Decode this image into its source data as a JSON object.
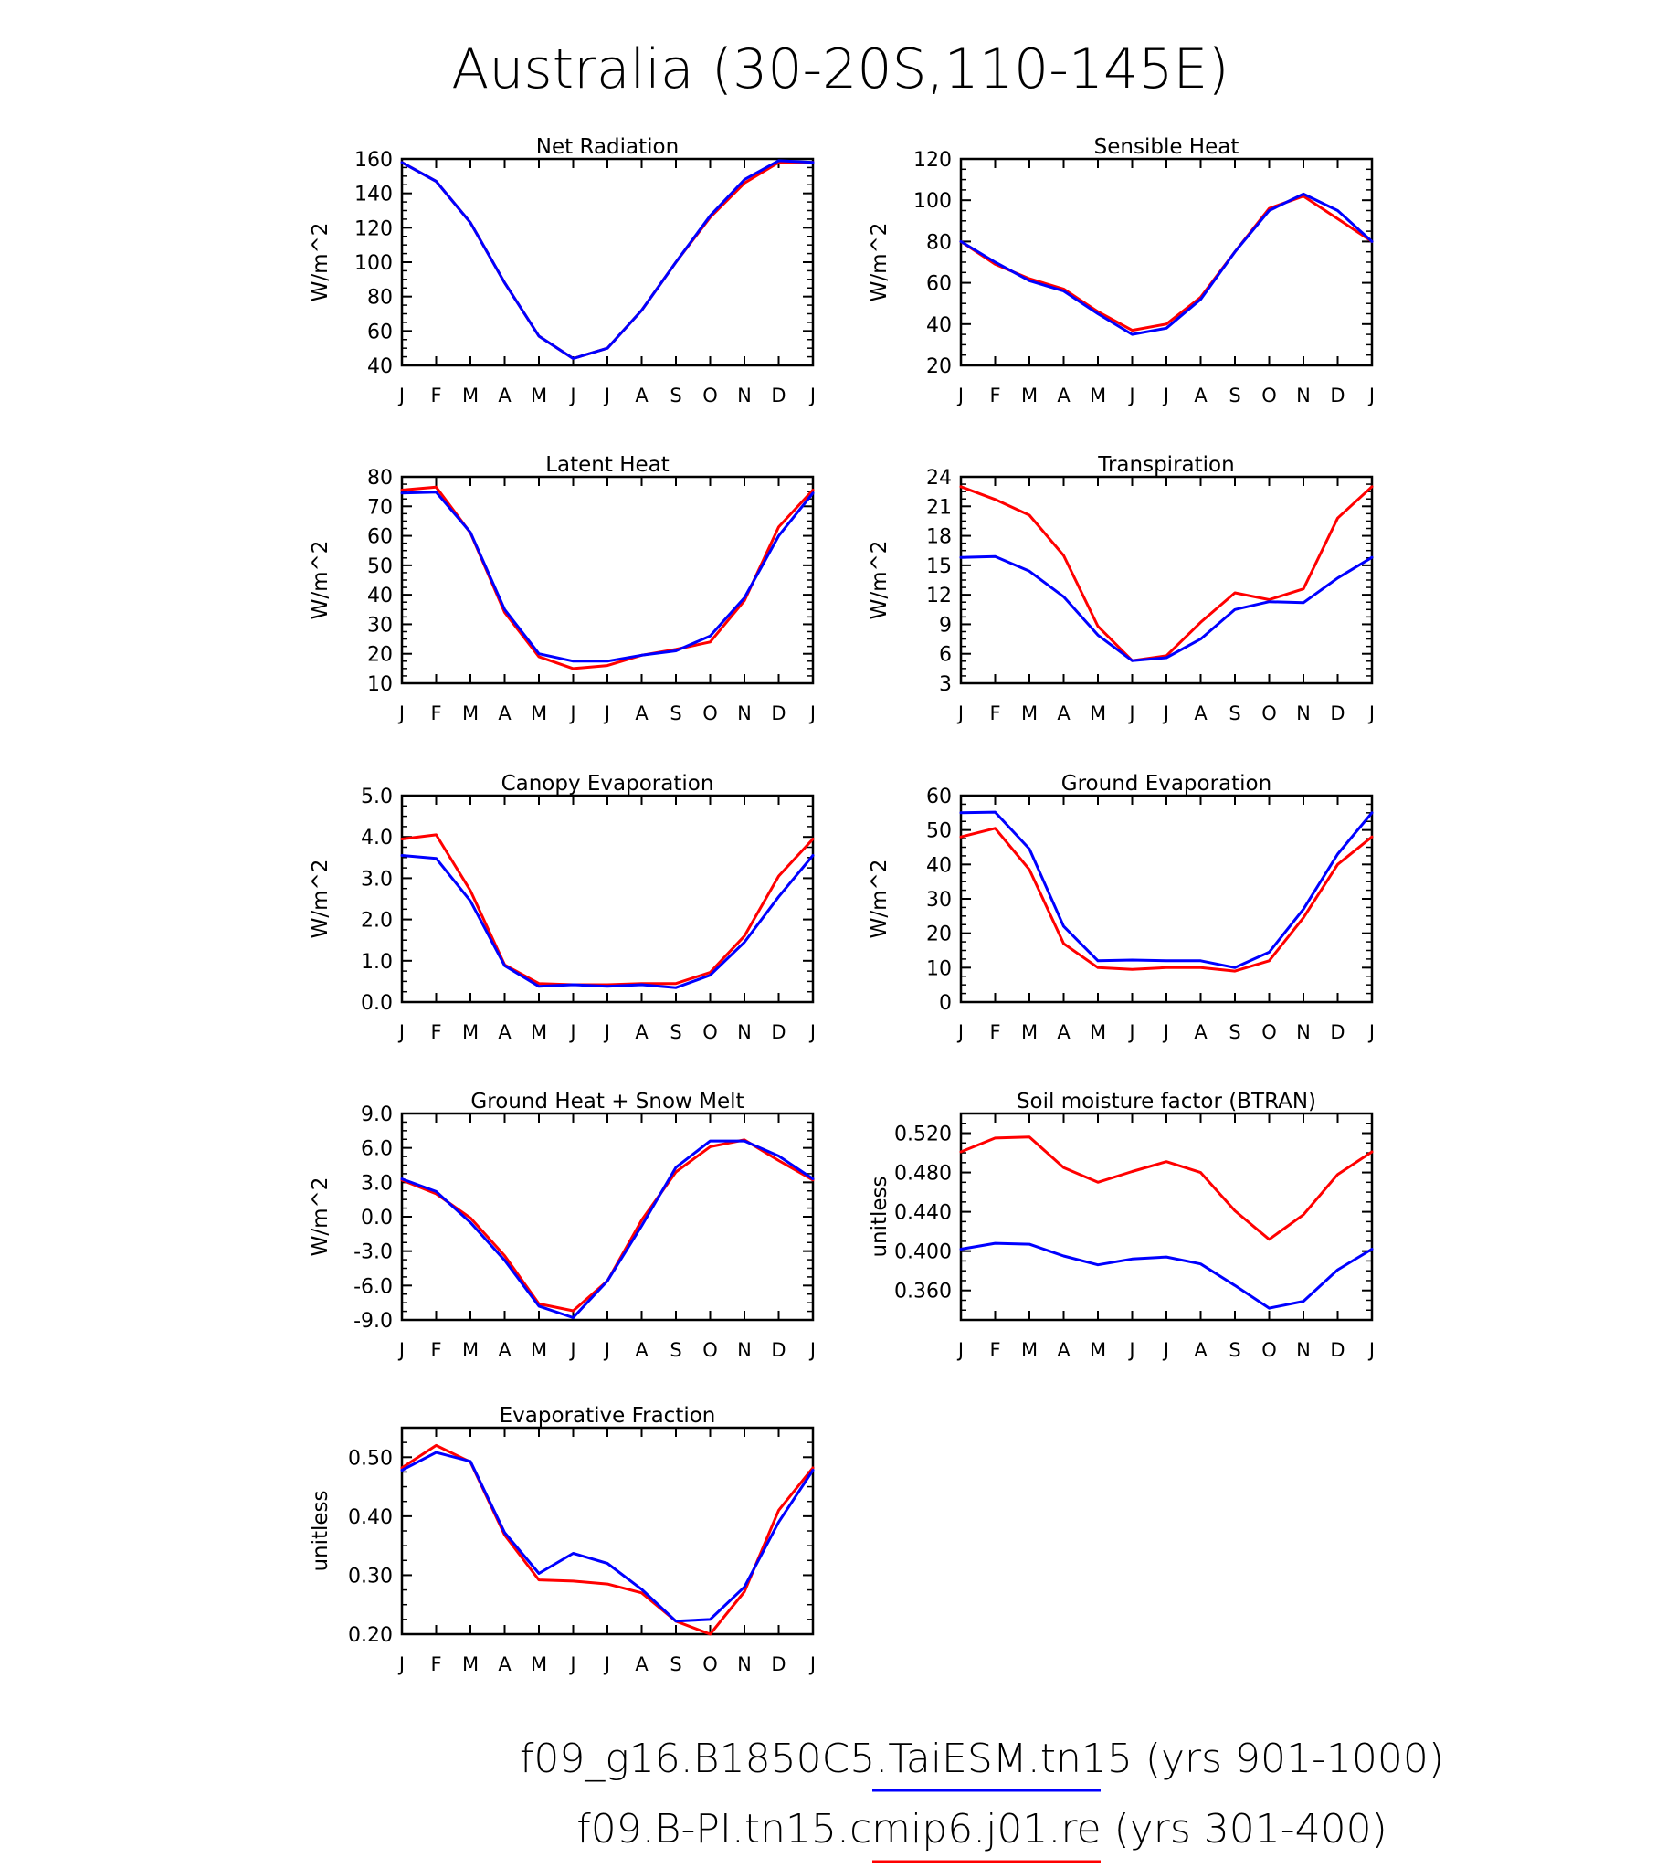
{
  "figure": {
    "title": "Australia (30-20S,110-145E)",
    "legend": [
      {
        "label": "f09_g16.B1850C5.TaiESM.tn15 (yrs 901-1000)",
        "color": "#0000ff"
      },
      {
        "label": "f09.B-PI.tn15.cmip6.j01.re (yrs 301-400)",
        "color": "#ff0000"
      }
    ]
  },
  "chart_data": [
    {
      "type": "line",
      "title": "Net Radiation",
      "ylabel": "W/m^2",
      "categories": [
        "J",
        "F",
        "M",
        "A",
        "M",
        "J",
        "J",
        "A",
        "S",
        "O",
        "N",
        "D",
        "J"
      ],
      "ylim": [
        40,
        160
      ],
      "yticks": [
        "40",
        "60",
        "80",
        "100",
        "120",
        "140",
        "160"
      ],
      "series": [
        {
          "color": "#ff0000",
          "values": [
            158,
            147,
            123,
            88,
            57,
            44,
            50,
            72,
            100,
            126,
            146,
            158,
            158
          ]
        },
        {
          "color": "#0000ff",
          "values": [
            158,
            147,
            123,
            88,
            57,
            44,
            50,
            72,
            100,
            127,
            148,
            159,
            158
          ]
        }
      ]
    },
    {
      "type": "line",
      "title": "Sensible Heat",
      "ylabel": "W/m^2",
      "categories": [
        "J",
        "F",
        "M",
        "A",
        "M",
        "J",
        "J",
        "A",
        "S",
        "O",
        "N",
        "D",
        "J"
      ],
      "ylim": [
        20,
        120
      ],
      "yticks": [
        "20",
        "40",
        "60",
        "80",
        "100",
        "120"
      ],
      "series": [
        {
          "color": "#ff0000",
          "values": [
            80,
            69,
            62,
            57,
            46,
            37,
            40,
            53,
            75,
            96,
            102,
            91,
            80
          ]
        },
        {
          "color": "#0000ff",
          "values": [
            80,
            70,
            61,
            56,
            45,
            35,
            38,
            52,
            75,
            95,
            103,
            95,
            80
          ]
        }
      ]
    },
    {
      "type": "line",
      "title": "Latent Heat",
      "ylabel": "W/m^2",
      "categories": [
        "J",
        "F",
        "M",
        "A",
        "M",
        "J",
        "J",
        "A",
        "S",
        "O",
        "N",
        "D",
        "J"
      ],
      "ylim": [
        10,
        80
      ],
      "yticks": [
        "10",
        "20",
        "30",
        "40",
        "50",
        "60",
        "70",
        "80"
      ],
      "series": [
        {
          "color": "#ff0000",
          "values": [
            75.5,
            76.5,
            61,
            34,
            19,
            15,
            16,
            19.5,
            21.5,
            24,
            38,
            63,
            75.5
          ]
        },
        {
          "color": "#0000ff",
          "values": [
            74.5,
            74.8,
            61.2,
            35,
            20,
            17.5,
            17.5,
            19.5,
            21,
            26,
            39,
            60,
            74.5
          ]
        }
      ]
    },
    {
      "type": "line",
      "title": "Transpiration",
      "ylabel": "W/m^2",
      "categories": [
        "J",
        "F",
        "M",
        "A",
        "M",
        "J",
        "J",
        "A",
        "S",
        "O",
        "N",
        "D",
        "J"
      ],
      "ylim": [
        3,
        24
      ],
      "yticks": [
        "3",
        "6",
        "9",
        "12",
        "15",
        "18",
        "21",
        "24"
      ],
      "series": [
        {
          "color": "#ff0000",
          "values": [
            23,
            21.7,
            20.1,
            16,
            8.8,
            5.3,
            5.8,
            9.2,
            12.2,
            11.5,
            12.6,
            19.8,
            23
          ]
        },
        {
          "color": "#0000ff",
          "values": [
            15.8,
            15.9,
            14.4,
            11.8,
            7.9,
            5.3,
            5.6,
            7.5,
            10.5,
            11.3,
            11.2,
            13.7,
            15.8
          ]
        }
      ]
    },
    {
      "type": "line",
      "title": "Canopy Evaporation",
      "ylabel": "W/m^2",
      "categories": [
        "J",
        "F",
        "M",
        "A",
        "M",
        "J",
        "J",
        "A",
        "S",
        "O",
        "N",
        "D",
        "J"
      ],
      "ylim": [
        0,
        5
      ],
      "yticks": [
        "0.0",
        "1.0",
        "2.0",
        "3.0",
        "4.0",
        "5.0"
      ],
      "series": [
        {
          "color": "#ff0000",
          "values": [
            3.95,
            4.05,
            2.7,
            0.9,
            0.45,
            0.42,
            0.42,
            0.45,
            0.45,
            0.72,
            1.6,
            3.05,
            3.95
          ]
        },
        {
          "color": "#0000ff",
          "values": [
            3.55,
            3.48,
            2.45,
            0.88,
            0.38,
            0.42,
            0.38,
            0.42,
            0.35,
            0.65,
            1.45,
            2.55,
            3.55
          ]
        }
      ]
    },
    {
      "type": "line",
      "title": "Ground Evaporation",
      "ylabel": "W/m^2",
      "categories": [
        "J",
        "F",
        "M",
        "A",
        "M",
        "J",
        "J",
        "A",
        "S",
        "O",
        "N",
        "D",
        "J"
      ],
      "ylim": [
        0,
        60
      ],
      "yticks": [
        "0",
        "10",
        "20",
        "30",
        "40",
        "50",
        "60"
      ],
      "series": [
        {
          "color": "#ff0000",
          "values": [
            48,
            50.5,
            38.5,
            17,
            10,
            9.5,
            10,
            10,
            9,
            12,
            24.5,
            40,
            48
          ]
        },
        {
          "color": "#0000ff",
          "values": [
            55,
            55.2,
            44.5,
            22,
            12,
            12.2,
            12,
            12,
            10,
            14.5,
            27,
            43,
            55
          ]
        }
      ]
    },
    {
      "type": "line",
      "title": "Ground Heat + Snow Melt",
      "ylabel": "W/m^2",
      "categories": [
        "J",
        "F",
        "M",
        "A",
        "M",
        "J",
        "J",
        "A",
        "S",
        "O",
        "N",
        "D",
        "J"
      ],
      "ylim": [
        -9,
        9
      ],
      "yticks": [
        "-9.0",
        "-6.0",
        "-3.0",
        "0.0",
        "3.0",
        "6.0",
        "9.0"
      ],
      "series": [
        {
          "color": "#ff0000",
          "values": [
            3.2,
            2,
            -0.1,
            -3.4,
            -7.6,
            -8.2,
            -5.6,
            -0.3,
            3.9,
            6.1,
            6.7,
            4.9,
            3.2
          ]
        },
        {
          "color": "#0000ff",
          "values": [
            3.3,
            2.2,
            -0.5,
            -3.8,
            -7.8,
            -8.8,
            -5.6,
            -0.8,
            4.3,
            6.6,
            6.6,
            5.3,
            3.3
          ]
        }
      ]
    },
    {
      "type": "line",
      "title": "Soil moisture factor (BTRAN)",
      "ylabel": "unitless",
      "categories": [
        "J",
        "F",
        "M",
        "A",
        "M",
        "J",
        "J",
        "A",
        "S",
        "O",
        "N",
        "D",
        "J"
      ],
      "ylim": [
        0.33,
        0.54
      ],
      "yticks": [
        "0.360",
        "0.400",
        "0.440",
        "0.480",
        "0.520"
      ],
      "series": [
        {
          "color": "#ff0000",
          "values": [
            0.501,
            0.515,
            0.516,
            0.485,
            0.47,
            0.481,
            0.491,
            0.48,
            0.441,
            0.412,
            0.437,
            0.478,
            0.501
          ]
        },
        {
          "color": "#0000ff",
          "values": [
            0.402,
            0.408,
            0.407,
            0.395,
            0.386,
            0.392,
            0.394,
            0.387,
            0.365,
            0.342,
            0.349,
            0.381,
            0.402
          ]
        }
      ]
    },
    {
      "type": "line",
      "title": "Evaporative Fraction",
      "ylabel": "unitless",
      "categories": [
        "J",
        "F",
        "M",
        "A",
        "M",
        "J",
        "J",
        "A",
        "S",
        "O",
        "N",
        "D",
        "J"
      ],
      "ylim": [
        0.2,
        0.55
      ],
      "yticks": [
        "0.20",
        "0.30",
        "0.40",
        "0.50"
      ],
      "series": [
        {
          "color": "#ff0000",
          "values": [
            0.482,
            0.52,
            0.492,
            0.368,
            0.292,
            0.29,
            0.285,
            0.27,
            0.222,
            0.2,
            0.272,
            0.41,
            0.482
          ]
        },
        {
          "color": "#0000ff",
          "values": [
            0.478,
            0.508,
            0.493,
            0.372,
            0.303,
            0.337,
            0.32,
            0.276,
            0.222,
            0.225,
            0.28,
            0.39,
            0.478
          ]
        }
      ]
    }
  ]
}
